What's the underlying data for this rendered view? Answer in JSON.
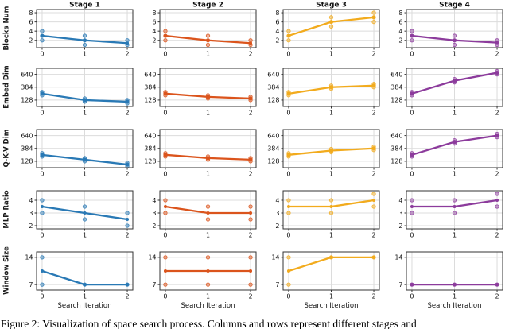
{
  "caption": "Figure 2: Visualization of space search process. Columns and rows represent different stages and",
  "chart_data": {
    "type": "line",
    "grid": true,
    "x": [
      0,
      1,
      2
    ],
    "xticks": [
      0,
      1,
      2
    ],
    "xlim": [
      -0.13,
      2.13
    ],
    "xlabel": "Search Iteration",
    "legend": "none",
    "col_titles": [
      "Stage 1",
      "Stage 2",
      "Stage 3",
      "Stage 4"
    ],
    "colors": [
      "#2979b5",
      "#db541c",
      "#f2ab1d",
      "#8c3b9c"
    ],
    "spine_color": "#333333",
    "grid_color": "#dcdcdc",
    "rows": [
      {
        "ylabel": "Blocks Num",
        "yticks": [
          2,
          4,
          6,
          8
        ],
        "ylim": [
          0.4,
          8.7
        ],
        "cells": [
          {
            "line": [
              3,
              2,
              1.4
            ],
            "scatter": [
              [
                4,
                3,
                2
              ],
              [
                3,
                2,
                1
              ],
              [
                2,
                1
              ]
            ]
          },
          {
            "line": [
              3,
              2,
              1.4
            ],
            "scatter": [
              [
                4,
                3,
                2
              ],
              [
                3,
                2,
                1
              ],
              [
                2,
                1
              ]
            ]
          },
          {
            "line": [
              3,
              6,
              7
            ],
            "scatter": [
              [
                4,
                3,
                2
              ],
              [
                7,
                6,
                5
              ],
              [
                8,
                7,
                6
              ]
            ]
          },
          {
            "line": [
              3,
              2,
              1.5
            ],
            "scatter": [
              [
                4,
                3,
                2
              ],
              [
                3,
                2,
                1
              ],
              [
                2,
                1
              ]
            ]
          }
        ]
      },
      {
        "ylabel": "Embed Dim",
        "yticks": [
          128,
          384,
          640
        ],
        "ylim": [
          0,
          760
        ],
        "cells": [
          {
            "line": [
              256,
              128,
              96
            ],
            "scatter": [
              [
                288,
                256,
                224
              ],
              [
                160,
                128,
                96
              ],
              [
                128,
                96,
                64
              ]
            ]
          },
          {
            "line": [
              256,
              192,
              160
            ],
            "scatter": [
              [
                288,
                256,
                224
              ],
              [
                224,
                192,
                160
              ],
              [
                192,
                160,
                128
              ]
            ]
          },
          {
            "line": [
              256,
              384,
              416
            ],
            "scatter": [
              [
                288,
                256,
                224
              ],
              [
                416,
                384,
                352
              ],
              [
                448,
                416,
                384
              ]
            ]
          },
          {
            "line": [
              256,
              512,
              672
            ],
            "scatter": [
              [
                288,
                256,
                224
              ],
              [
                544,
                512,
                480
              ],
              [
                704,
                672,
                640
              ]
            ]
          }
        ]
      },
      {
        "ylabel": "Q-K-V Dim",
        "yticks": [
          128,
          384,
          640
        ],
        "ylim": [
          0,
          760
        ],
        "cells": [
          {
            "line": [
              256,
              160,
              64
            ],
            "scatter": [
              [
                288,
                256,
                224
              ],
              [
                192,
                160,
                128
              ],
              [
                96,
                64,
                32
              ]
            ]
          },
          {
            "line": [
              256,
              192,
              160
            ],
            "scatter": [
              [
                288,
                256,
                224
              ],
              [
                224,
                192,
                160
              ],
              [
                192,
                160,
                128
              ]
            ]
          },
          {
            "line": [
              256,
              340,
              384
            ],
            "scatter": [
              [
                288,
                256,
                224
              ],
              [
                372,
                340,
                308
              ],
              [
                416,
                384,
                352
              ]
            ]
          },
          {
            "line": [
              256,
              512,
              640
            ],
            "scatter": [
              [
                288,
                256,
                224
              ],
              [
                544,
                512,
                480
              ],
              [
                672,
                640,
                608
              ]
            ]
          }
        ]
      },
      {
        "ylabel": "MLP Ratio",
        "yticks": [
          2,
          3,
          4
        ],
        "ylim": [
          1.75,
          4.75
        ],
        "cells": [
          {
            "line": [
              3.5,
              3,
              2.5
            ],
            "scatter": [
              [
                4,
                3
              ],
              [
                3.5,
                2.5
              ],
              [
                3,
                2
              ]
            ]
          },
          {
            "line": [
              3.5,
              3,
              3
            ],
            "scatter": [
              [
                4,
                3
              ],
              [
                3.5,
                2.5
              ],
              [
                3.5,
                2.5
              ]
            ]
          },
          {
            "line": [
              3.5,
              3.5,
              4
            ],
            "scatter": [
              [
                4,
                3
              ],
              [
                4,
                3
              ],
              [
                4.5,
                3.5
              ]
            ]
          },
          {
            "line": [
              3.5,
              3.5,
              4
            ],
            "scatter": [
              [
                4,
                3
              ],
              [
                4,
                3
              ],
              [
                4.5,
                3.5
              ]
            ]
          }
        ]
      },
      {
        "ylabel": "Window Size",
        "yticks": [
          7,
          14
        ],
        "ylim": [
          5.6,
          15.4
        ],
        "cells": [
          {
            "line": [
              10.5,
              7,
              7
            ],
            "scatter": [
              [
                14,
                7
              ],
              [
                7
              ],
              [
                7
              ]
            ]
          },
          {
            "line": [
              10.5,
              10.5,
              10.5
            ],
            "scatter": [
              [
                14,
                7
              ],
              [
                14,
                7
              ],
              [
                14,
                7
              ]
            ]
          },
          {
            "line": [
              10.5,
              14,
              14
            ],
            "scatter": [
              [
                14,
                7
              ],
              [
                14
              ],
              [
                14
              ]
            ]
          },
          {
            "line": [
              7,
              7,
              7
            ],
            "scatter": [
              [
                7
              ],
              [
                7
              ],
              [
                7
              ]
            ]
          }
        ]
      }
    ]
  }
}
